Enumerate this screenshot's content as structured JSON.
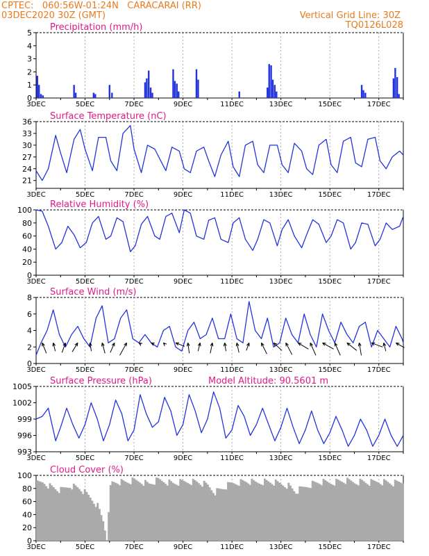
{
  "header": {
    "line1_left": "CPTEC:   060:56W-01:24N   CARACARAI (RR)",
    "line2_left": "03DEC2020 30Z (GMT)",
    "right1": "Vertical Grid Line: 30Z",
    "right2": "TQ0126L028"
  },
  "colors": {
    "header": "#e87a1e",
    "title": "#e0198a",
    "series": "#2233dd",
    "cloud": "#aaaaaa"
  },
  "x_axis_labels": [
    "3DEC",
    "5DEC",
    "7DEC",
    "9DEC",
    "11DEC",
    "13DEC",
    "15DEC",
    "17DEC"
  ],
  "chart_data": [
    {
      "id": "precip",
      "type": "bar",
      "title": "Precipitation (mm/h)",
      "ylim": [
        0,
        5
      ],
      "yticks": [
        0,
        1,
        2,
        3,
        4,
        5
      ],
      "x_start_day": 3,
      "x_end_day": 18,
      "x": [
        3.05,
        3.12,
        3.2,
        3.28,
        4.55,
        4.62,
        5.35,
        5.42,
        6.0,
        6.1,
        7.45,
        7.52,
        7.6,
        7.68,
        7.75,
        8.6,
        8.67,
        8.75,
        8.82,
        9.55,
        9.62,
        11.3,
        12.45,
        12.52,
        12.6,
        12.67,
        12.75,
        12.82,
        16.3,
        16.37,
        16.45,
        17.6,
        17.67,
        17.75,
        17.82
      ],
      "values": [
        1.7,
        1.0,
        0.3,
        0.2,
        1.0,
        0.4,
        0.4,
        0.3,
        1.0,
        0.4,
        1.2,
        1.5,
        2.1,
        0.8,
        0.4,
        2.2,
        1.3,
        1.1,
        0.5,
        2.2,
        1.4,
        0.5,
        0.8,
        2.6,
        2.5,
        1.4,
        1.0,
        0.5,
        1.0,
        0.6,
        0.4,
        1.5,
        2.3,
        1.6,
        0.3
      ]
    },
    {
      "id": "temp",
      "type": "line",
      "title": "Surface Temperature (nC)",
      "ylim": [
        19,
        36
      ],
      "yticks": [
        21,
        24,
        27,
        30,
        33,
        36
      ],
      "x": [
        3.0,
        3.25,
        3.5,
        3.8,
        4.0,
        4.25,
        4.55,
        4.8,
        5.0,
        5.3,
        5.55,
        5.85,
        6.05,
        6.3,
        6.55,
        6.85,
        7.0,
        7.3,
        7.55,
        7.85,
        8.05,
        8.3,
        8.55,
        8.85,
        9.05,
        9.3,
        9.55,
        9.85,
        10.05,
        10.3,
        10.55,
        10.85,
        11.05,
        11.3,
        11.55,
        11.85,
        12.05,
        12.3,
        12.55,
        12.85,
        13.05,
        13.3,
        13.55,
        13.85,
        14.05,
        14.3,
        14.55,
        14.85,
        15.05,
        15.3,
        15.55,
        15.85,
        16.05,
        16.3,
        16.55,
        16.85,
        17.05,
        17.3,
        17.55,
        17.85,
        18.0
      ],
      "values": [
        23.5,
        21.0,
        24.0,
        32.5,
        28.0,
        23.0,
        31.5,
        34.0,
        29.0,
        23.5,
        32.0,
        32.0,
        26.0,
        23.5,
        33.0,
        35.0,
        29.0,
        23.0,
        30.0,
        29.0,
        26.5,
        23.5,
        29.5,
        28.5,
        24.0,
        23.0,
        28.5,
        29.5,
        26.0,
        22.0,
        27.5,
        31.0,
        24.5,
        22.0,
        30.0,
        31.0,
        25.0,
        23.0,
        30.0,
        30.0,
        25.0,
        23.0,
        30.5,
        28.5,
        24.0,
        22.5,
        30.0,
        31.5,
        25.0,
        23.0,
        31.0,
        32.0,
        25.5,
        24.5,
        31.5,
        32.0,
        26.0,
        24.0,
        27.0,
        28.5,
        27.5
      ]
    },
    {
      "id": "rh",
      "type": "line",
      "title": "Relative Humidity (%)",
      "ylim": [
        0,
        100
      ],
      "yticks": [
        0,
        20,
        40,
        60,
        80,
        100
      ],
      "x": [
        3.0,
        3.25,
        3.5,
        3.8,
        4.05,
        4.3,
        4.55,
        4.8,
        5.05,
        5.3,
        5.55,
        5.85,
        6.05,
        6.3,
        6.55,
        6.85,
        7.05,
        7.3,
        7.55,
        7.85,
        8.05,
        8.3,
        8.55,
        8.85,
        9.05,
        9.3,
        9.55,
        9.85,
        10.05,
        10.3,
        10.55,
        10.85,
        11.05,
        11.3,
        11.55,
        11.85,
        12.05,
        12.3,
        12.55,
        12.85,
        13.05,
        13.3,
        13.55,
        13.85,
        14.05,
        14.3,
        14.55,
        14.85,
        15.05,
        15.3,
        15.55,
        15.85,
        16.05,
        16.3,
        16.55,
        16.85,
        17.05,
        17.3,
        17.55,
        17.85,
        18.0
      ],
      "values": [
        100,
        98,
        75,
        40,
        50,
        75,
        62,
        42,
        50,
        80,
        90,
        55,
        60,
        88,
        82,
        36,
        45,
        78,
        90,
        60,
        55,
        90,
        95,
        65,
        100,
        95,
        60,
        55,
        84,
        88,
        55,
        50,
        80,
        88,
        55,
        38,
        55,
        85,
        80,
        45,
        70,
        85,
        60,
        42,
        62,
        85,
        78,
        50,
        60,
        85,
        80,
        40,
        50,
        80,
        78,
        45,
        55,
        80,
        70,
        75,
        90
      ]
    },
    {
      "id": "wind",
      "type": "line",
      "title": "Surface Wind (m/s)",
      "ylim": [
        0,
        8
      ],
      "yticks": [
        0,
        2,
        4,
        6,
        8
      ],
      "x": [
        3.0,
        3.2,
        3.45,
        3.7,
        3.95,
        4.2,
        4.45,
        4.7,
        4.95,
        5.2,
        5.45,
        5.7,
        5.95,
        6.2,
        6.45,
        6.7,
        6.95,
        7.2,
        7.45,
        7.7,
        7.95,
        8.2,
        8.45,
        8.7,
        8.95,
        9.2,
        9.45,
        9.7,
        9.95,
        10.2,
        10.45,
        10.7,
        10.95,
        11.2,
        11.45,
        11.7,
        11.95,
        12.2,
        12.45,
        12.7,
        12.95,
        13.2,
        13.45,
        13.7,
        13.95,
        14.2,
        14.45,
        14.7,
        14.95,
        15.2,
        15.45,
        15.7,
        15.95,
        16.2,
        16.45,
        16.7,
        16.95,
        17.2,
        17.45,
        17.7,
        17.95,
        18.0
      ],
      "values": [
        1.0,
        2.5,
        4.0,
        6.5,
        3.5,
        2.0,
        3.5,
        4.5,
        3.0,
        2.0,
        5.5,
        7.0,
        2.5,
        3.0,
        5.5,
        6.5,
        3.0,
        2.5,
        3.5,
        2.5,
        2.0,
        4.0,
        4.5,
        2.0,
        1.5,
        4.0,
        5.0,
        3.0,
        3.5,
        5.5,
        3.0,
        3.0,
        6.0,
        3.0,
        2.5,
        7.5,
        4.0,
        3.0,
        5.5,
        2.0,
        2.5,
        5.5,
        3.5,
        2.5,
        6.0,
        3.5,
        2.0,
        6.0,
        4.0,
        2.5,
        5.0,
        3.5,
        2.5,
        4.5,
        5.0,
        2.0,
        4.0,
        3.0,
        2.0,
        4.5,
        3.0,
        2.5
      ],
      "vectors": {
        "x": [
          3.25,
          3.7,
          4.2,
          4.7,
          5.2,
          5.7,
          6.2,
          6.7,
          7.2,
          7.7,
          8.2,
          8.7,
          9.2,
          9.7,
          10.2,
          10.7,
          11.2,
          11.7,
          12.2,
          12.7,
          13.2,
          13.7,
          14.2,
          14.7,
          15.2,
          15.7,
          16.2,
          16.7,
          17.2,
          17.7
        ],
        "u": [
          0.6,
          0.3,
          -0.5,
          -0.8,
          0.2,
          0.4,
          -0.6,
          -1.0,
          0.3,
          0.4,
          0.2,
          1.3,
          0.2,
          -0.3,
          -0.3,
          0.2,
          0.3,
          -0.4,
          0.8,
          1.2,
          0.9,
          1.5,
          0.8,
          1.6,
          0.8,
          1.4,
          0.3,
          1.6,
          0.3,
          1.2
        ],
        "v": [
          1.5,
          1.2,
          1.4,
          1.3,
          1.2,
          1.5,
          1.4,
          1.8,
          0.2,
          0.2,
          0.2,
          0.5,
          1.5,
          1.2,
          1.5,
          1.2,
          1.4,
          1.1,
          1.6,
          1.1,
          1.7,
          0.9,
          1.8,
          0.9,
          1.8,
          1.1,
          1.8,
          0.6,
          1.2,
          0.7
        ]
      }
    },
    {
      "id": "press",
      "type": "line",
      "title": "Surface Pressure (hPa)",
      "extra_label": "Model Altitude: 90.5601 m",
      "ylim": [
        993,
        1005
      ],
      "yticks": [
        993,
        996,
        999,
        1002,
        1005
      ],
      "ytick_labels": [
        "993",
        "996",
        "999",
        "1002",
        "1005"
      ],
      "x": [
        3.0,
        3.25,
        3.5,
        3.8,
        4.0,
        4.25,
        4.5,
        4.75,
        5.0,
        5.25,
        5.5,
        5.75,
        6.0,
        6.25,
        6.5,
        6.75,
        7.0,
        7.25,
        7.5,
        7.75,
        8.0,
        8.25,
        8.5,
        8.75,
        9.0,
        9.25,
        9.5,
        9.75,
        10.0,
        10.25,
        10.5,
        10.75,
        11.0,
        11.25,
        11.5,
        11.75,
        12.0,
        12.25,
        12.5,
        12.75,
        13.0,
        13.25,
        13.5,
        13.75,
        14.0,
        14.25,
        14.5,
        14.75,
        15.0,
        15.25,
        15.5,
        15.75,
        16.0,
        16.25,
        16.5,
        16.75,
        17.0,
        17.25,
        17.5,
        17.75,
        18.0
      ],
      "values": [
        999.0,
        999.5,
        1001.0,
        995.0,
        997.5,
        1001.0,
        998.0,
        995.5,
        998.0,
        1002.0,
        999.0,
        995.0,
        998.0,
        1002.5,
        1000.0,
        995.0,
        997.0,
        1003.5,
        1000.0,
        997.5,
        998.5,
        1003.0,
        1000.5,
        996.0,
        998.0,
        1003.5,
        1000.5,
        996.5,
        999.0,
        1004.0,
        1001.0,
        995.5,
        997.0,
        1001.5,
        999.5,
        996.0,
        998.0,
        1001.0,
        998.0,
        995.0,
        997.5,
        1001.0,
        997.5,
        994.5,
        997.0,
        1000.5,
        997.0,
        994.5,
        996.5,
        999.5,
        997.0,
        994.0,
        996.0,
        999.0,
        997.0,
        994.0,
        996.0,
        999.0,
        996.0,
        994.0,
        996.0
      ]
    },
    {
      "id": "cloud",
      "type": "area",
      "title": "Cloud Cover (%)",
      "ylim": [
        0,
        100
      ],
      "yticks": [
        0,
        20,
        40,
        60,
        80,
        100
      ],
      "x": [
        3.0,
        3.3,
        3.6,
        4.0,
        4.4,
        4.8,
        5.2,
        5.5,
        5.75,
        5.9,
        6.05,
        6.3,
        6.6,
        7.0,
        7.3,
        7.6,
        8.0,
        8.3,
        8.6,
        9.0,
        9.3,
        9.6,
        10.0,
        10.3,
        10.6,
        11.0,
        11.3,
        11.6,
        12.0,
        12.3,
        12.6,
        13.0,
        13.3,
        13.6,
        14.0,
        14.3,
        14.6,
        15.0,
        15.3,
        15.6,
        16.0,
        16.3,
        16.6,
        17.0,
        17.3,
        17.6,
        18.0
      ],
      "values": [
        92,
        95,
        88,
        82,
        90,
        85,
        72,
        60,
        35,
        8,
        94,
        96,
        95,
        97,
        96,
        92,
        98,
        96,
        93,
        95,
        96,
        95,
        90,
        80,
        85,
        93,
        95,
        96,
        94,
        96,
        95,
        92,
        90,
        80,
        88,
        93,
        95,
        94,
        96,
        97,
        95,
        96,
        94,
        96,
        95,
        93,
        95
      ]
    }
  ]
}
